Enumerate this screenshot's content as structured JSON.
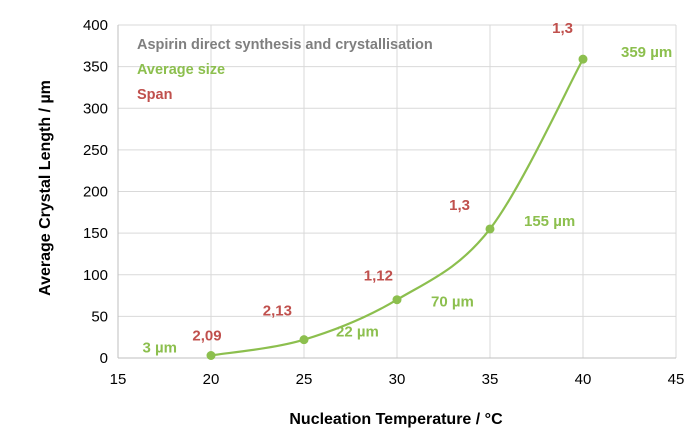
{
  "chart_data": {
    "type": "line",
    "xlabel": "Nucleation Temperature / °C",
    "ylabel": "Average Crystal Length / µm",
    "xlim": [
      15,
      45
    ],
    "ylim": [
      0,
      400
    ],
    "xticks": [
      "15",
      "20",
      "25",
      "30",
      "35",
      "40",
      "45"
    ],
    "yticks": [
      "0",
      "50",
      "100",
      "150",
      "200",
      "250",
      "300",
      "350",
      "400"
    ],
    "grid": true,
    "smooth": true,
    "legend_position": "top-left",
    "legend": [
      {
        "text": "Aspirin direct synthesis and crystallisation",
        "color": "#7f7f7f"
      },
      {
        "text": "Average size",
        "color": "#8cbf4e"
      },
      {
        "text": "Span",
        "color": "#c0504d"
      }
    ],
    "series": [
      {
        "color": "#8cbf4e",
        "x": [
          20,
          25,
          30,
          35,
          40
        ],
        "y": [
          3,
          22,
          70,
          155,
          359
        ],
        "size_labels": [
          "3 µm",
          "22 µm",
          "70 µm",
          "155 µm",
          "359 µm"
        ],
        "span_labels": [
          "2,09",
          "2,13",
          "1,12",
          "1,3",
          "1,3"
        ]
      }
    ]
  }
}
